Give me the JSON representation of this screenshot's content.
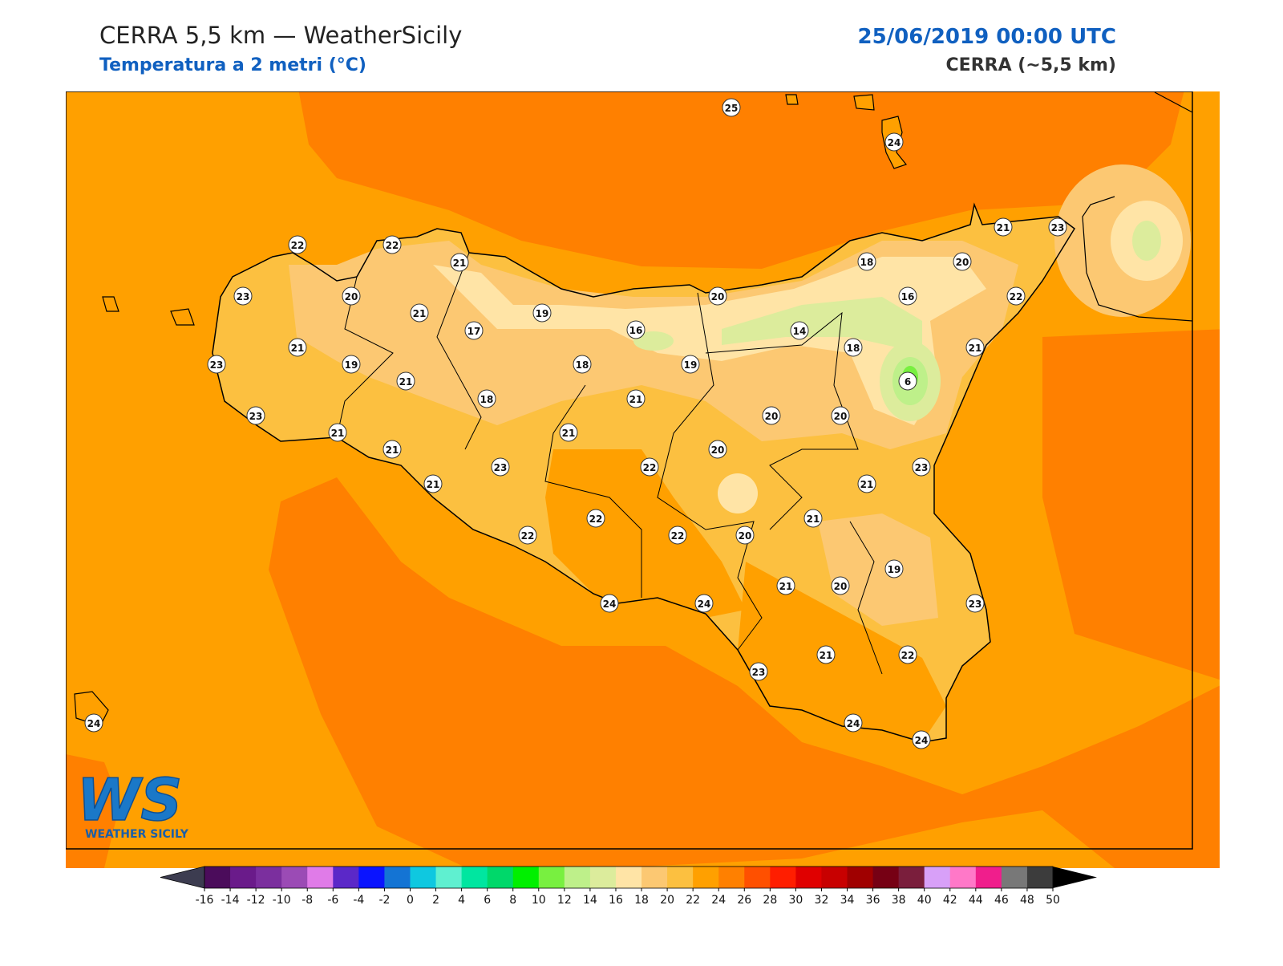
{
  "header": {
    "title": "CERRA 5,5 km — WeatherSicily",
    "subtitle": "Temperatura a 2 metri (°C)",
    "date": "25/06/2019 00:00 UTC",
    "model": "CERRA (~5,5 km)"
  },
  "map": {
    "stations": [
      25,
      24,
      22,
      22,
      21,
      21,
      23,
      23,
      20,
      21,
      19,
      17,
      16,
      20,
      18,
      20,
      16,
      22,
      14,
      18,
      21,
      21,
      23,
      19,
      21,
      18,
      19,
      6,
      18,
      21,
      23,
      20,
      20,
      21,
      21,
      21,
      20,
      23,
      22,
      23,
      21,
      21,
      22,
      21,
      22,
      22,
      20,
      19,
      21,
      20,
      24,
      24,
      23,
      21,
      22,
      23,
      24,
      24,
      24
    ]
  },
  "colorbar": {
    "ticks": [
      -16,
      -14,
      -12,
      -10,
      -8,
      -6,
      -4,
      -2,
      0,
      2,
      4,
      6,
      8,
      10,
      12,
      14,
      16,
      18,
      20,
      22,
      24,
      26,
      28,
      30,
      32,
      34,
      36,
      38,
      40,
      42,
      44,
      46,
      48,
      50
    ],
    "colors": [
      "#4b0c5b",
      "#6a1b8a",
      "#7b2f9e",
      "#9b4bb5",
      "#e07be8",
      "#5b28c8",
      "#0a14ff",
      "#1474d4",
      "#0fc8e0",
      "#5ff0d0",
      "#00e6a0",
      "#00d86a",
      "#00f000",
      "#78f040",
      "#bef08a",
      "#dcec9c",
      "#ffe4a6",
      "#fcc872",
      "#fcc040",
      "#ffa000",
      "#ff8000",
      "#ff5000",
      "#ff1e00",
      "#e00000",
      "#c80000",
      "#a00000",
      "#760014",
      "#7a1e3c",
      "#d8a0f8",
      "#ff78c8",
      "#f01e8c",
      "#787878",
      "#3c3c3c"
    ],
    "under_color": "#3c3c50",
    "over_color": "#000000"
  },
  "logo": {
    "mark": "WS",
    "name": "WEATHER SICILY"
  }
}
